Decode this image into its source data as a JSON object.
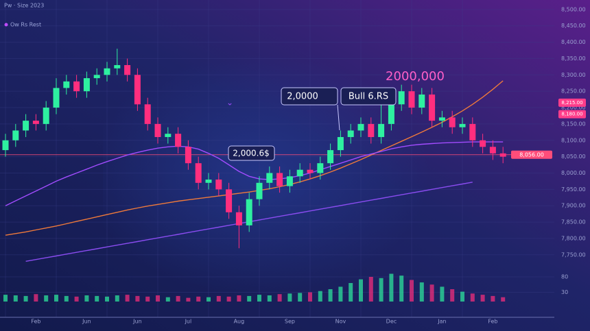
{
  "chart_data": {
    "type": "candlestick",
    "title": "Pw · Size 2023",
    "subtitle": "Ow Rs Rest",
    "categories": [
      null,
      null,
      null,
      "Feb",
      null,
      null,
      null,
      null,
      "Jun",
      null,
      null,
      null,
      null,
      "Jun",
      null,
      null,
      null,
      null,
      "Jul",
      null,
      null,
      null,
      null,
      "Aug",
      null,
      null,
      null,
      null,
      "Sep",
      null,
      null,
      null,
      null,
      "Nov",
      null,
      null,
      null,
      null,
      "Dec",
      null,
      null,
      null,
      null,
      "Jan",
      null,
      null,
      null,
      null,
      "Feb",
      null
    ],
    "open": [
      8070,
      8100,
      8130,
      8160,
      8150,
      8200,
      8260,
      8280,
      8250,
      8290,
      8300,
      8320,
      8330,
      8300,
      8210,
      8150,
      8110,
      8120,
      8080,
      8030,
      7970,
      7980,
      7950,
      7880,
      7840,
      7920,
      7970,
      8000,
      7960,
      7990,
      8010,
      8000,
      8030,
      8070,
      8110,
      8130,
      8150,
      8110,
      8150,
      8210,
      8250,
      8200,
      8240,
      8160,
      8170,
      8140,
      8150,
      8100,
      8080,
      8060
    ],
    "high": [
      8120,
      8150,
      8180,
      8180,
      8220,
      8290,
      8300,
      8300,
      8310,
      8320,
      8340,
      8380,
      8350,
      8320,
      8230,
      8170,
      8140,
      8140,
      8100,
      8050,
      8000,
      8000,
      7970,
      7900,
      7940,
      7990,
      8020,
      8020,
      8010,
      8030,
      8030,
      8050,
      8090,
      8130,
      8150,
      8170,
      8170,
      8240,
      8230,
      8270,
      8270,
      8260,
      8260,
      8190,
      8190,
      8170,
      8170,
      8120,
      8100,
      8080
    ],
    "low": [
      8050,
      8080,
      8110,
      8130,
      8130,
      8180,
      8240,
      8230,
      8230,
      8270,
      8280,
      8300,
      8280,
      8190,
      8130,
      8090,
      8090,
      8060,
      8010,
      7950,
      7950,
      7930,
      7860,
      7770,
      7820,
      7900,
      7950,
      7940,
      7940,
      7970,
      7980,
      7980,
      8010,
      8050,
      8090,
      8110,
      8090,
      8090,
      8130,
      8190,
      8180,
      8180,
      8140,
      8140,
      8120,
      8120,
      8080,
      8060,
      8040,
      8030
    ],
    "close": [
      8100,
      8130,
      8160,
      8150,
      8200,
      8260,
      8280,
      8250,
      8290,
      8300,
      8320,
      8330,
      8300,
      8210,
      8150,
      8110,
      8120,
      8080,
      8030,
      7970,
      7980,
      7950,
      7880,
      7840,
      7920,
      7970,
      8000,
      7960,
      7990,
      8010,
      8000,
      8030,
      8070,
      8110,
      8130,
      8150,
      8110,
      8150,
      8210,
      8250,
      8200,
      8240,
      8160,
      8170,
      8140,
      8150,
      8100,
      8080,
      8060,
      8050
    ],
    "up_color": "#2ef0a0",
    "down_color": "#ff2e7e",
    "lines": [
      {
        "color": "#f07a3a",
        "values": [
          7810,
          7815,
          7820,
          7826,
          7832,
          7838,
          7845,
          7852,
          7859,
          7866,
          7873,
          7880,
          7887,
          7893,
          7899,
          7904,
          7909,
          7914,
          7918,
          7922,
          7926,
          7930,
          7934,
          7938,
          7942,
          7947,
          7952,
          7958,
          7965,
          7973,
          7982,
          7992,
          8003,
          8015,
          8028,
          8041,
          8055,
          8069,
          8083,
          8097,
          8111,
          8125,
          8140,
          8155,
          8172,
          8190,
          8210,
          8232,
          8256,
          8282
        ]
      },
      {
        "color": "#a24cff",
        "values": [
          7900,
          7915,
          7930,
          7945,
          7960,
          7975,
          7988,
          8000,
          8012,
          8024,
          8035,
          8045,
          8055,
          8063,
          8070,
          8076,
          8080,
          8082,
          8080,
          8073,
          8060,
          8045,
          8025,
          8005,
          7990,
          7982,
          7980,
          7982,
          7986,
          7992,
          8000,
          8010,
          8020,
          8030,
          8040,
          8050,
          8058,
          8066,
          8074,
          8080,
          8085,
          8088,
          8090,
          8092,
          8093,
          8094,
          8095,
          8095,
          8095,
          8095
        ]
      },
      {
        "color": "#8a4cf0",
        "values": [
          null,
          null,
          7730,
          7735.5,
          7741,
          7746.5,
          7752,
          7757.5,
          7763,
          7768.5,
          7774,
          7779.5,
          7785,
          7790.5,
          7796,
          7801.5,
          7807,
          7812.5,
          7818,
          7823.5,
          7829,
          7834.5,
          7840,
          7845.5,
          7851,
          7856.5,
          7862,
          7867.5,
          7873,
          7878.5,
          7884,
          7889.5,
          7895,
          7900.5,
          7906,
          7911.5,
          7917,
          7922.5,
          7928,
          7933.5,
          7939,
          7944.5,
          7950,
          7955.5,
          7961,
          7966.5,
          7972,
          null,
          null,
          null
        ]
      }
    ],
    "price_line": {
      "value": 8056,
      "label": "8,056.00",
      "color": "#ff4d7a"
    },
    "price_tags": [
      {
        "value": 8215,
        "label": "8,215.00"
      },
      {
        "value": 8180,
        "label": "8,180.00"
      }
    ],
    "ylim": [
      7737,
      8529
    ],
    "yticks": [
      {
        "value": 8500,
        "label": "8,500.00"
      },
      {
        "value": 8450,
        "label": "8,450.00"
      },
      {
        "value": 8400,
        "label": "8,400.00"
      },
      {
        "value": 8350,
        "label": "8,350.00"
      },
      {
        "value": 8300,
        "label": "8,300.00"
      },
      {
        "value": 8250,
        "label": "8,250.00"
      },
      {
        "value": 8200,
        "label": "8,200.00"
      },
      {
        "value": 8150,
        "label": "8,150.00"
      },
      {
        "value": 8100,
        "label": "8,100.00"
      },
      {
        "value": 8050,
        "label": "8,050.00"
      },
      {
        "value": 8000,
        "label": "8,000.00"
      },
      {
        "value": 7950,
        "label": "7,950.00"
      },
      {
        "value": 7900,
        "label": "7,900.00"
      },
      {
        "value": 7850,
        "label": "7,850.00"
      },
      {
        "value": 7800,
        "label": "7,800.00"
      },
      {
        "value": 7750,
        "label": "7,750.00"
      }
    ],
    "grid": true,
    "volume": [
      22,
      20,
      18,
      24,
      20,
      22,
      18,
      16,
      20,
      18,
      16,
      20,
      22,
      18,
      16,
      20,
      14,
      18,
      12,
      16,
      14,
      18,
      16,
      20,
      18,
      22,
      20,
      24,
      26,
      28,
      30,
      34,
      40,
      48,
      60,
      72,
      80,
      76,
      90,
      84,
      70,
      62,
      55,
      48,
      40,
      32,
      26,
      22,
      18,
      14
    ],
    "vlim": [
      0,
      100
    ],
    "vticks": [
      80,
      30
    ],
    "annotations": {
      "peak": "2000,000",
      "box1": "2,0000",
      "box2": "Bull 6.RS",
      "box3": "2,000.6$"
    }
  }
}
